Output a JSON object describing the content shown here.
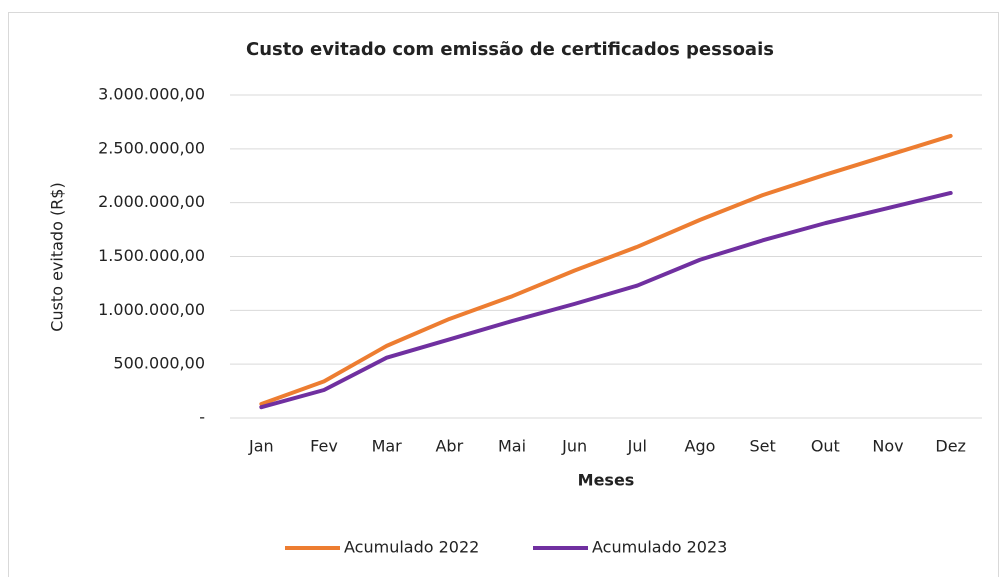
{
  "chart_data": {
    "type": "line",
    "title": "Custo evitado com emissão de certificados pessoais",
    "x_label": "Meses",
    "y_label": "Custo evitado (R$)",
    "categories": [
      "Jan",
      "Fev",
      "Mar",
      "Abr",
      "Mai",
      "Jun",
      "Jul",
      "Ago",
      "Set",
      "Out",
      "Nov",
      "Dez"
    ],
    "series": [
      {
        "name": "Acumulado 2022",
        "color": "#ed7d31",
        "values": [
          130000,
          340000,
          670000,
          920000,
          1130000,
          1370000,
          1590000,
          1840000,
          2070000,
          2260000,
          2440000,
          2620000
        ]
      },
      {
        "name": "Acumulado 2023",
        "color": "#7030a0",
        "values": [
          100000,
          260000,
          560000,
          730000,
          900000,
          1060000,
          1230000,
          1470000,
          1650000,
          1810000,
          1950000,
          2090000
        ]
      }
    ],
    "ylim": [
      0,
      3000000
    ],
    "yticks": [
      {
        "value": 0,
        "label": "-"
      },
      {
        "value": 500000,
        "label": "500.000,00"
      },
      {
        "value": 1000000,
        "label": "1.000.000,00"
      },
      {
        "value": 1500000,
        "label": "1.500.000,00"
      },
      {
        "value": 2000000,
        "label": "2.000.000,00"
      },
      {
        "value": 2500000,
        "label": "2.500.000,00"
      },
      {
        "value": 3000000,
        "label": "3.000.000,00"
      }
    ],
    "grid": true,
    "legend": "bottom"
  }
}
